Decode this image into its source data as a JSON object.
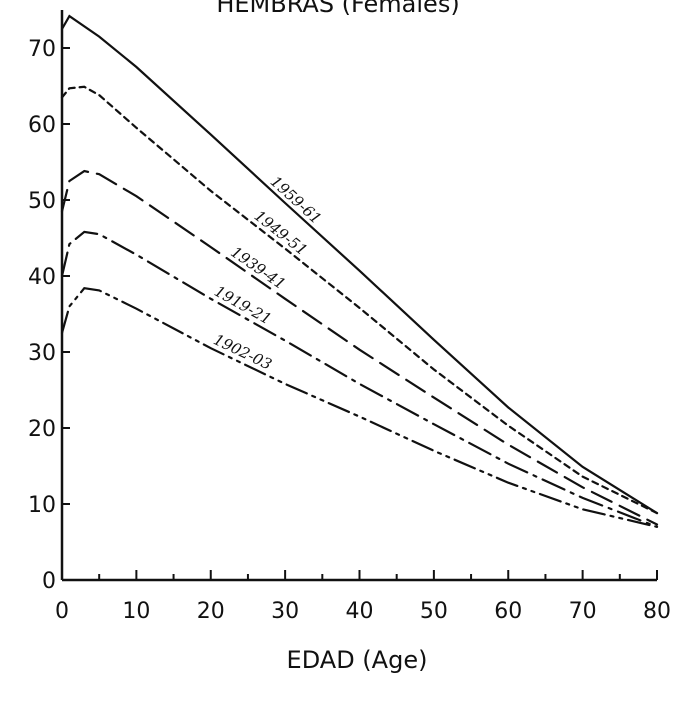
{
  "chart_data": {
    "type": "line",
    "title": "HEMBRAS (Females)",
    "xlabel": "EDAD (Age)",
    "ylabel": "",
    "xlim": [
      0,
      80
    ],
    "ylim": [
      0,
      75
    ],
    "x_ticks": [
      0,
      10,
      20,
      30,
      40,
      50,
      60,
      70,
      80
    ],
    "y_ticks": [
      0,
      10,
      20,
      30,
      40,
      50,
      60,
      70
    ],
    "grid": false,
    "series": [
      {
        "name": "1959-61",
        "style": "solid",
        "x": [
          0,
          1,
          5,
          10,
          20,
          30,
          40,
          50,
          60,
          70,
          80
        ],
        "y": [
          72.5,
          74.2,
          71.5,
          67.5,
          58.6,
          49.6,
          40.7,
          31.6,
          22.7,
          14.9,
          8.8
        ]
      },
      {
        "name": "1949-51",
        "style": "short-dash",
        "x": [
          0,
          1,
          3,
          5,
          10,
          20,
          30,
          40,
          50,
          60,
          70,
          80
        ],
        "y": [
          63.5,
          64.7,
          64.9,
          63.8,
          59.5,
          51.2,
          43.6,
          35.8,
          27.7,
          20.3,
          13.6,
          8.8
        ]
      },
      {
        "name": "1939-41",
        "style": "long-dash",
        "x": [
          0,
          1,
          3,
          5,
          10,
          20,
          30,
          40,
          50,
          60,
          70,
          80
        ],
        "y": [
          48.5,
          52.5,
          53.8,
          53.4,
          50.5,
          43.8,
          37.0,
          30.3,
          24.0,
          17.8,
          12.2,
          7.3
        ]
      },
      {
        "name": "1919-21",
        "style": "dash-dot",
        "x": [
          0,
          1,
          3,
          5,
          10,
          20,
          30,
          40,
          50,
          60,
          70,
          80
        ],
        "y": [
          40.0,
          44.2,
          45.8,
          45.5,
          42.8,
          37.0,
          31.5,
          25.8,
          20.5,
          15.3,
          10.8,
          7.0
        ]
      },
      {
        "name": "1902-03",
        "style": "dash-dot-dot",
        "x": [
          0,
          1,
          3,
          5,
          10,
          20,
          30,
          40,
          50,
          60,
          70,
          80
        ],
        "y": [
          32.5,
          36.0,
          38.4,
          38.1,
          35.7,
          30.5,
          25.8,
          21.5,
          17.0,
          12.8,
          9.3,
          7.0
        ]
      }
    ],
    "annotations": [
      {
        "text": "1959-61",
        "series": "1959-61",
        "at_x": 31
      },
      {
        "text": "1949-51",
        "series": "1949-51",
        "at_x": 29
      },
      {
        "text": "1939-41",
        "series": "1939-41",
        "at_x": 26
      },
      {
        "text": "1919-21",
        "series": "1919-21",
        "at_x": 24
      },
      {
        "text": "1902-03",
        "series": "1902-03",
        "at_x": 24
      }
    ]
  }
}
